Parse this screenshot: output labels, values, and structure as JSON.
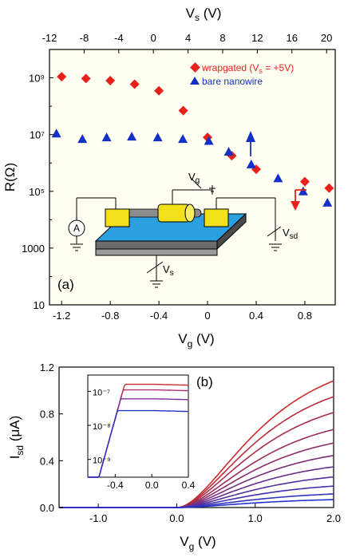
{
  "chart_data": [
    {
      "type": "scatter",
      "panel_label": "(a)",
      "top_axis": {
        "label_main": "V",
        "label_sub": "s",
        "label_unit": " (V)",
        "ticks": [
          -12,
          -8,
          -4,
          0,
          4,
          8,
          12,
          16,
          20
        ],
        "tick_labels": [
          "-12",
          "-8",
          "-4",
          "0",
          "4",
          "8",
          "12",
          "16",
          "20"
        ],
        "range": [
          -12,
          21
        ]
      },
      "bottom_axis": {
        "label_main": "V",
        "label_sub": "g",
        "label_unit": " (V)",
        "ticks": [
          -1.2,
          -0.8,
          -0.4,
          0,
          0.4,
          0.8
        ],
        "tick_labels": [
          "-1.2",
          "-0.8",
          "-0.4",
          "0",
          "0.4",
          "0.8"
        ],
        "range": [
          -1.3,
          1.05
        ]
      },
      "left_axis": {
        "label": "R(Ω)",
        "scale": "log",
        "range": [
          10,
          10000000000.0
        ],
        "ticks": [
          10,
          1000,
          100000,
          10000000,
          1000000000
        ],
        "tick_labels": [
          "10",
          "1000",
          "10⁵",
          "10⁷",
          "10⁹"
        ]
      },
      "series": [
        {
          "name": "wrapgated (V",
          "name_sub": "s",
          "name_tail": " = +5V)",
          "color": "#e8201c",
          "marker": "diamond",
          "x_axis": "bottom",
          "x": [
            -1.2,
            -1.0,
            -0.8,
            -0.6,
            -0.4,
            -0.2,
            0.0,
            0.2,
            0.4,
            0.8,
            1.0
          ],
          "y": [
            1100000000.0,
            950000000.0,
            800000000.0,
            600000000.0,
            350000000.0,
            70000000.0,
            8000000.0,
            1800000.0,
            600000.0,
            220000.0,
            130000.0
          ]
        },
        {
          "name": "bare nanowire",
          "color": "#1430c8",
          "marker": "triangle",
          "x_axis": "top",
          "x": [
            -11.2,
            -8.2,
            -5.4,
            -2.5,
            0.5,
            3.4,
            6.4,
            8.7,
            11.3,
            14.4,
            17.3,
            20.1
          ],
          "y": [
            11000000.0,
            7000000.0,
            8000000.0,
            8500000.0,
            8000000.0,
            7000000.0,
            6000000.0,
            2500000.0,
            900000.0,
            290000.0,
            100000.0,
            40000.0
          ]
        }
      ],
      "schematic_labels": {
        "gate": "V",
        "gate_sub": "g",
        "sd": "V",
        "sd_sub": "sd",
        "substrate": "V",
        "substrate_sub": "s",
        "ammeter": "A"
      }
    },
    {
      "type": "line",
      "panel_label": "(b)",
      "x_axis": {
        "label_main": "V",
        "label_sub": "g",
        "label_unit": " (V)",
        "range": [
          -1.5,
          2.0
        ],
        "ticks": [
          -1.0,
          0.0,
          1.0,
          2.0
        ],
        "tick_labels": [
          "-1.0",
          "0.0",
          "1.0",
          "2.0"
        ]
      },
      "y_axis": {
        "label_main": "I",
        "label_sub": "sd",
        "label_unit": " (μA)",
        "range": [
          0,
          1.2
        ],
        "ticks": [
          0.0,
          0.4,
          0.8,
          1.2
        ],
        "tick_labels": [
          "0.0",
          "0.4",
          "0.8",
          "1.2"
        ]
      },
      "threshold_v": 0.0,
      "colors": {
        "start": "#cc2a2a",
        "end": "#2233cc"
      },
      "series": [
        {
          "sat": 1.12
        },
        {
          "sat": 0.98
        },
        {
          "sat": 0.84
        },
        {
          "sat": 0.69
        },
        {
          "sat": 0.57
        },
        {
          "sat": 0.46
        },
        {
          "sat": 0.36
        },
        {
          "sat": 0.27
        },
        {
          "sat": 0.19
        },
        {
          "sat": 0.12
        },
        {
          "sat": 0.07
        }
      ],
      "inset": {
        "type": "line",
        "x_axis": {
          "range": [
            -0.7,
            0.4
          ],
          "ticks": [
            -0.4,
            0.0,
            0.4
          ],
          "tick_labels": [
            "-0.4",
            "0.0",
            "0.4"
          ]
        },
        "y_axis": {
          "scale": "log",
          "range": [
            3e-10,
            3e-07
          ],
          "ticks": [
            1e-09,
            1e-08,
            1e-07
          ],
          "tick_labels": [
            "10⁻⁹",
            "10⁻⁸",
            "10⁻⁷"
          ]
        },
        "series": [
          {
            "sat": 1.6e-07,
            "color": "#cc2a2a"
          },
          {
            "sat": 1.1e-07,
            "color": "#b02f70"
          },
          {
            "sat": 6e-08,
            "color": "#7a2f9e"
          },
          {
            "sat": 2.7e-08,
            "color": "#2233cc"
          }
        ]
      }
    }
  ]
}
